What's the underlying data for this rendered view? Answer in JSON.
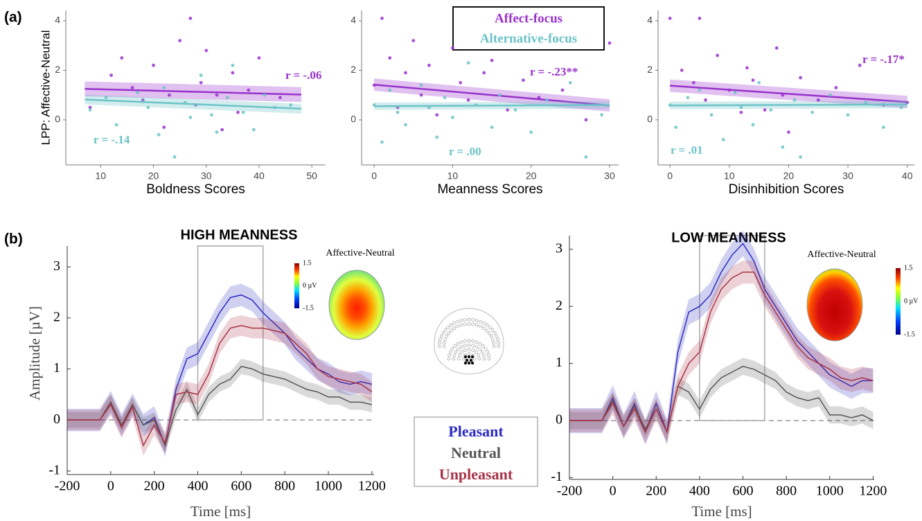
{
  "panel_labels": {
    "a": "(a)",
    "b": "(b)"
  },
  "chart_data": [
    {
      "type": "scatter",
      "xlabel": "Boldness Scores",
      "ylabel": "LPP: Affective-Neutral",
      "xlim": [
        3.4,
        52.6
      ],
      "ylim": [
        -1.82,
        4.42
      ],
      "xticks": [
        10,
        20,
        30,
        40,
        50
      ],
      "yticks": [
        0,
        2,
        4
      ],
      "series": [
        {
          "color": "#9932cc",
          "x": [
            8,
            12,
            14,
            16,
            18,
            20,
            22,
            23,
            25,
            27,
            28,
            29,
            30,
            32,
            33,
            35,
            36,
            38,
            40,
            44
          ],
          "y": [
            0.5,
            1.8,
            2.5,
            1.3,
            0.8,
            2.2,
            -0.3,
            1.0,
            3.2,
            4.1,
            0.6,
            1.5,
            2.8,
            1.0,
            -0.4,
            1.9,
            0.3,
            1.2,
            2.5,
            0.9
          ],
          "fit": {
            "x": [
              7,
              48
            ],
            "y": [
              1.25,
              1.02
            ]
          },
          "ci": 0.3
        },
        {
          "color": "#6cc3c8",
          "x": [
            8,
            11,
            13,
            17,
            19,
            21,
            22,
            24,
            26,
            27,
            29,
            31,
            32,
            34,
            35,
            37,
            39,
            41,
            43,
            46
          ],
          "y": [
            0.4,
            0.9,
            -0.2,
            1.1,
            0.5,
            -0.6,
            1.3,
            -1.5,
            0.7,
            0.1,
            1.8,
            0.2,
            -0.5,
            0.9,
            2.2,
            0.3,
            -0.4,
            1.0,
            0.5,
            0.6
          ],
          "fit": {
            "x": [
              7,
              48
            ],
            "y": [
              0.82,
              0.45
            ]
          },
          "ci": 0.2
        }
      ],
      "annotations": [
        {
          "text": "r = -.06",
          "color": "#9932cc"
        },
        {
          "text": "r = -.14",
          "color": "#6cc3c8"
        }
      ]
    },
    {
      "type": "scatter",
      "xlabel": "Meanness Scores",
      "xlim": [
        -1.6,
        31.15
      ],
      "ylim": [
        -1.82,
        4.42
      ],
      "xticks": [
        0,
        10,
        20,
        30
      ],
      "yticks": [
        0,
        2,
        4
      ],
      "series": [
        {
          "name": "Affect-focus",
          "color": "#9932cc",
          "x": [
            0,
            1,
            2,
            3,
            4,
            5,
            6,
            7,
            8,
            10,
            11,
            12,
            14,
            15,
            17,
            19,
            21,
            24,
            27,
            30
          ],
          "y": [
            1.4,
            4.1,
            2.5,
            0.5,
            1.9,
            3.2,
            1.0,
            2.2,
            0.2,
            2.9,
            1.5,
            0.8,
            1.9,
            2.4,
            0.4,
            1.6,
            0.9,
            1.2,
            0.0,
            3.1
          ],
          "fit": {
            "x": [
              0,
              30
            ],
            "y": [
              1.42,
              0.58
            ]
          },
          "ci": 0.25
        },
        {
          "name": "Alternative-focus",
          "color": "#6cc3c8",
          "x": [
            0,
            1,
            2,
            3,
            4,
            6,
            7,
            8,
            9,
            10,
            12,
            13,
            15,
            16,
            18,
            20,
            22,
            25,
            27,
            29
          ],
          "y": [
            0.6,
            -0.9,
            1.2,
            0.3,
            -0.2,
            1.4,
            0.5,
            -0.7,
            0.9,
            0.1,
            2.3,
            0.6,
            -0.3,
            1.0,
            0.4,
            -0.5,
            0.8,
            1.5,
            -1.5,
            0.2
          ],
          "fit": {
            "x": [
              0,
              30
            ],
            "y": [
              0.55,
              0.6
            ]
          },
          "ci": 0.15
        }
      ],
      "annotations": [
        {
          "text": "r = -.23**",
          "color": "#9932cc"
        },
        {
          "text": "r = .00",
          "color": "#6cc3c8"
        }
      ]
    },
    {
      "type": "scatter",
      "xlabel": "Disinhibition Scores",
      "xlim": [
        -2.0,
        41.2
      ],
      "ylim": [
        -1.82,
        4.42
      ],
      "xticks": [
        0,
        10,
        20,
        30,
        40
      ],
      "yticks": [
        0,
        2,
        4
      ],
      "series": [
        {
          "color": "#9932cc",
          "x": [
            0,
            2,
            4,
            5,
            6,
            8,
            10,
            12,
            13,
            14,
            16,
            18,
            19,
            20,
            22,
            25,
            28,
            32,
            36,
            40
          ],
          "y": [
            4.1,
            2.0,
            1.5,
            4.1,
            0.8,
            2.6,
            1.2,
            0.3,
            2.1,
            1.6,
            0.4,
            2.9,
            1.0,
            -0.5,
            1.7,
            0.8,
            1.3,
            2.2,
            0.6,
            0.7
          ],
          "fit": {
            "x": [
              0,
              40
            ],
            "y": [
              1.38,
              0.72
            ]
          },
          "ci": 0.25
        },
        {
          "color": "#6cc3c8",
          "x": [
            0,
            1,
            3,
            5,
            7,
            9,
            11,
            12,
            14,
            15,
            17,
            19,
            21,
            22,
            24,
            27,
            30,
            33,
            36,
            39
          ],
          "y": [
            0.6,
            -0.3,
            0.9,
            1.2,
            0.2,
            -0.8,
            1.1,
            0.5,
            -0.2,
            1.5,
            0.4,
            -1.1,
            0.8,
            -1.5,
            0.3,
            1.0,
            0.2,
            0.7,
            -0.3,
            0.5
          ],
          "fit": {
            "x": [
              0,
              40
            ],
            "y": [
              0.58,
              0.62
            ]
          },
          "ci": 0.15
        }
      ],
      "annotations": [
        {
          "text": "r = -.17*",
          "color": "#9932cc"
        },
        {
          "text": "r = .01",
          "color": "#6cc3c8"
        }
      ]
    },
    {
      "type": "line",
      "title": "HIGH MEANNESS",
      "xlabel": "Time [ms]",
      "ylabel": "Amplitude [µV]",
      "xlim": [
        -200,
        1210
      ],
      "ylim": [
        -1.07,
        3.41
      ],
      "xticks": [
        -200,
        0,
        200,
        400,
        600,
        800,
        1000,
        1200
      ],
      "yticks": [
        -1,
        0,
        1,
        2,
        3
      ],
      "window": [
        400,
        700
      ],
      "x": [
        -200,
        -150,
        -100,
        -50,
        0,
        50,
        100,
        150,
        200,
        250,
        300,
        350,
        400,
        450,
        500,
        550,
        600,
        650,
        700,
        750,
        800,
        850,
        900,
        950,
        1000,
        1050,
        1100,
        1150,
        1200
      ],
      "series": [
        {
          "name": "Pleasant",
          "color": "#2b2bc0",
          "ci": 0.22,
          "values": [
            0,
            0,
            0,
            0,
            0.35,
            -0.1,
            0.3,
            -0.1,
            0.05,
            -0.5,
            0.6,
            1.2,
            1.3,
            1.7,
            2.1,
            2.4,
            2.45,
            2.35,
            2.1,
            1.9,
            1.7,
            1.4,
            1.2,
            1.0,
            0.9,
            0.75,
            0.7,
            0.75,
            0.7
          ]
        },
        {
          "name": "Neutral",
          "color": "#555555",
          "ci": 0.15,
          "values": [
            0,
            0,
            0,
            0,
            0.35,
            -0.1,
            0.3,
            -0.1,
            0.0,
            -0.5,
            0.2,
            0.6,
            0.1,
            0.5,
            0.7,
            0.8,
            1.05,
            1.0,
            0.9,
            0.85,
            0.8,
            0.7,
            0.6,
            0.55,
            0.45,
            0.45,
            0.35,
            0.35,
            0.3
          ]
        },
        {
          "name": "Unpleasant",
          "color": "#a83246",
          "ci": 0.2,
          "values": [
            0,
            0,
            0,
            0,
            0.3,
            -0.15,
            0.25,
            -0.5,
            -0.1,
            -0.45,
            0.5,
            0.55,
            0.5,
            0.9,
            1.5,
            1.8,
            1.85,
            1.8,
            1.8,
            1.75,
            1.7,
            1.5,
            1.3,
            1.0,
            0.85,
            0.8,
            0.75,
            0.7,
            0.55
          ]
        }
      ],
      "inset": {
        "title": "Affective-Neutral",
        "colorbar_lim": [
          -1.5,
          1.5
        ],
        "colorbar_ticks": [
          1.5,
          {
            "value": 0,
            "label": "0 µV"
          },
          -1.5
        ]
      }
    },
    {
      "type": "line",
      "title": "LOW MEANNESS",
      "xlabel": "Time [ms]",
      "xlim": [
        -200,
        1205
      ],
      "ylim": [
        -1.03,
        3.24
      ],
      "xticks": [
        -200,
        0,
        200,
        400,
        600,
        800,
        1000,
        1200
      ],
      "yticks": [
        -1,
        0,
        1,
        2,
        3
      ],
      "window": [
        400,
        700
      ],
      "x": [
        -200,
        -150,
        -100,
        -50,
        0,
        50,
        100,
        150,
        200,
        250,
        300,
        350,
        400,
        450,
        500,
        550,
        600,
        650,
        700,
        750,
        800,
        850,
        900,
        950,
        1000,
        1050,
        1100,
        1150,
        1200
      ],
      "series": [
        {
          "color": "#2b2bc0",
          "ci": 0.22,
          "values": [
            0,
            0,
            0,
            0,
            0.4,
            -0.1,
            0.3,
            -0.2,
            0.3,
            -0.2,
            1.2,
            1.9,
            2.0,
            2.2,
            2.6,
            2.9,
            3.1,
            2.8,
            2.3,
            2.0,
            1.7,
            1.4,
            1.2,
            1.0,
            0.8,
            0.7,
            0.6,
            0.7,
            0.7
          ]
        },
        {
          "color": "#555555",
          "ci": 0.15,
          "values": [
            0,
            0,
            0,
            0,
            0.35,
            -0.1,
            0.25,
            -0.15,
            0.2,
            -0.2,
            0.6,
            0.5,
            0.2,
            0.55,
            0.75,
            0.85,
            0.95,
            0.9,
            0.8,
            0.7,
            0.5,
            0.4,
            0.35,
            0.4,
            0.1,
            0.1,
            0.05,
            0.1,
            0.0
          ]
        },
        {
          "color": "#a83246",
          "ci": 0.2,
          "values": [
            0,
            0,
            0,
            0,
            0.3,
            -0.1,
            0.2,
            -0.2,
            0.2,
            -0.2,
            0.6,
            1.0,
            1.2,
            1.9,
            2.3,
            2.5,
            2.6,
            2.6,
            2.2,
            1.9,
            1.6,
            1.3,
            1.1,
            1.0,
            0.9,
            0.75,
            0.7,
            0.75,
            0.7
          ]
        }
      ],
      "inset": {
        "title": "Affective-Neutral",
        "colorbar_lim": [
          -1.5,
          1.5
        ],
        "colorbar_ticks": [
          1.5,
          {
            "value": 0,
            "label": "0 µV"
          },
          -1.5
        ]
      }
    }
  ]
}
